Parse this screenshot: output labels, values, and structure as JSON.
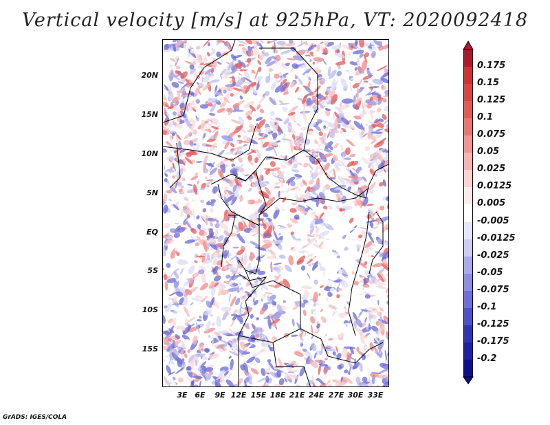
{
  "title": "Vertical velocity [m/s] at 925hPa, VT: 2020092418",
  "footer": "GrADS: IGES/COLA",
  "lat_labels": [
    "20N",
    "15N",
    "10N",
    "5N",
    "EQ",
    "5S",
    "10S",
    "15S"
  ],
  "lon_labels": [
    "3E",
    "6E",
    "9E",
    "12E",
    "15E",
    "18E",
    "21E",
    "24E",
    "27E",
    "30E",
    "33E"
  ],
  "colorbar": {
    "labels": [
      "0.175",
      "0.15",
      "0.125",
      "0.1",
      "0.075",
      "0.05",
      "0.025",
      "0.0125",
      "0.005",
      "-0.005",
      "-0.0125",
      "-0.025",
      "-0.05",
      "-0.075",
      "-0.1",
      "-0.125",
      "-0.175",
      "-0.2"
    ],
    "colors": [
      "#b2182b",
      "#cc3333",
      "#d9463e",
      "#e35a52",
      "#ea7670",
      "#f09591",
      "#f6b5b2",
      "#fbd3d1",
      "#fdebea",
      "#ffffff",
      "#e6e6fa",
      "#cccdf4",
      "#a9aaed",
      "#8c8de3",
      "#6f6fd9",
      "#5050c8",
      "#3333b5",
      "#2020a5",
      "#10108f"
    ]
  }
}
